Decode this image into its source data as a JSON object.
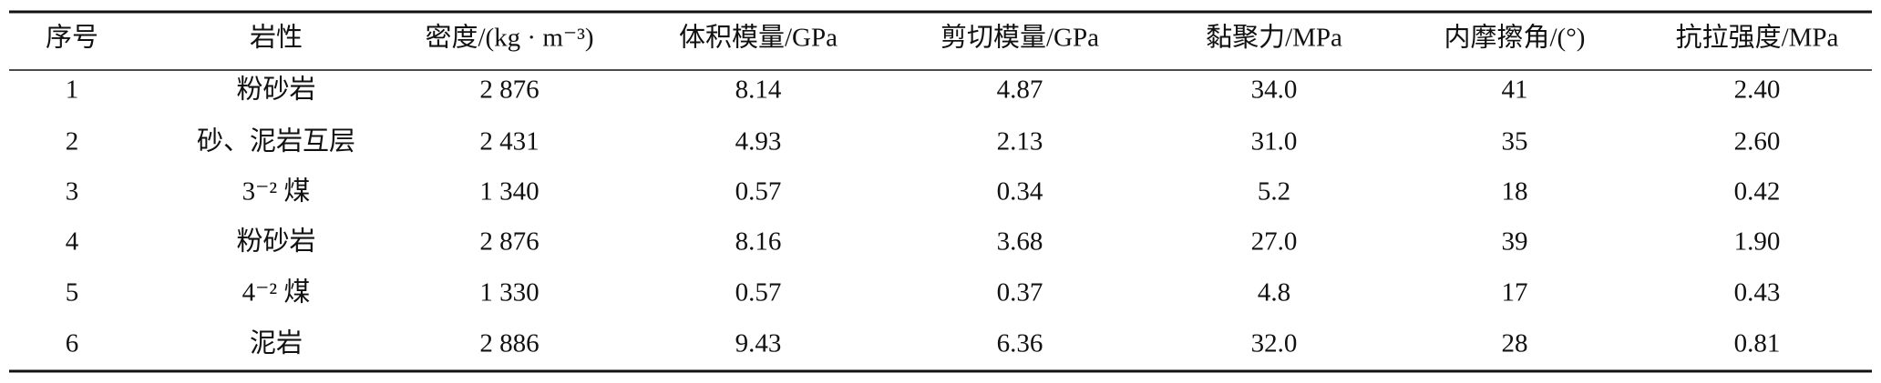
{
  "table": {
    "header": [
      "序号",
      "岩性",
      "密度/(kg · m⁻³)",
      "体积模量/GPa",
      "剪切模量/GPa",
      "黏聚力/MPa",
      "内摩擦角/(°)",
      "抗拉强度/MPa"
    ],
    "rows": [
      [
        "1",
        "粉砂岩",
        "2 876",
        "8.14",
        "4.87",
        "34.0",
        "41",
        "2.40"
      ],
      [
        "2",
        "砂、泥岩互层",
        "2 431",
        "4.93",
        "2.13",
        "31.0",
        "35",
        "2.60"
      ],
      [
        "3",
        "3⁻² 煤",
        "1 340",
        "0.57",
        "0.34",
        "5.2",
        "18",
        "0.42"
      ],
      [
        "4",
        "粉砂岩",
        "2 876",
        "8.16",
        "3.68",
        "27.0",
        "39",
        "1.90"
      ],
      [
        "5",
        "4⁻² 煤",
        "1 330",
        "0.57",
        "0.37",
        "4.8",
        "17",
        "0.43"
      ],
      [
        "6",
        "泥岩",
        "2 886",
        "9.43",
        "6.36",
        "32.0",
        "28",
        "0.81"
      ]
    ]
  }
}
